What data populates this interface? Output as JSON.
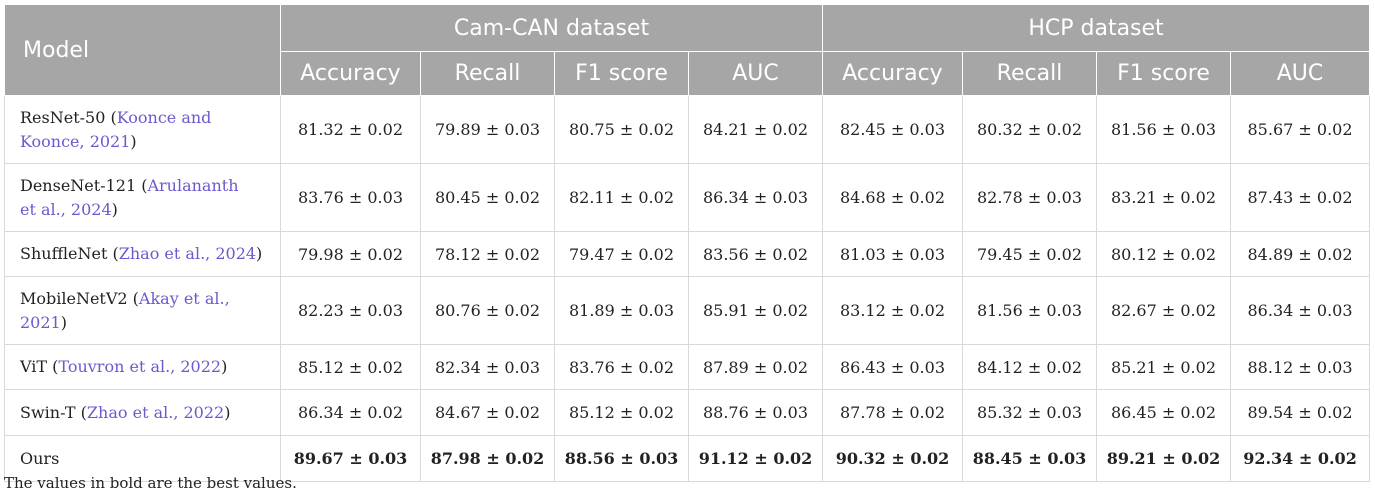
{
  "header": {
    "model": "Model",
    "groups": [
      "Cam-CAN dataset",
      "HCP dataset"
    ],
    "metrics": [
      "Accuracy",
      "Recall",
      "F1 score",
      "AUC",
      "Accuracy",
      "Recall",
      "F1 score",
      "AUC"
    ]
  },
  "rows": [
    {
      "name": "ResNet-50",
      "cite_line1": "Koonce and",
      "cite_line2": "Koonce, 2021",
      "close": ")",
      "values": [
        "81.32 ± 0.02",
        "79.89 ± 0.03",
        "80.75 ± 0.02",
        "84.21 ± 0.02",
        "82.45 ± 0.03",
        "80.32 ± 0.02",
        "81.56 ± 0.03",
        "85.67 ± 0.02"
      ]
    },
    {
      "name": "DenseNet-121",
      "cite_line1": "Arulananth",
      "cite_line2": "et al., 2024",
      "close": ")",
      "values": [
        "83.76 ± 0.03",
        "80.45 ± 0.02",
        "82.11 ± 0.02",
        "86.34 ± 0.03",
        "84.68 ± 0.02",
        "82.78 ± 0.03",
        "83.21 ± 0.02",
        "87.43 ± 0.02"
      ]
    },
    {
      "name": "ShuffleNet",
      "cite": "Zhao et al., 2024",
      "close": ")",
      "values": [
        "79.98 ± 0.02",
        "78.12 ± 0.02",
        "79.47 ± 0.02",
        "83.56 ± 0.02",
        "81.03 ± 0.03",
        "79.45 ± 0.02",
        "80.12 ± 0.02",
        "84.89 ± 0.02"
      ]
    },
    {
      "name": "MobileNetV2",
      "cite_line1": "Akay et al.,",
      "cite_line2": "2021",
      "close": ")",
      "values": [
        "82.23 ± 0.03",
        "80.76 ± 0.02",
        "81.89 ± 0.03",
        "85.91 ± 0.02",
        "83.12 ± 0.02",
        "81.56 ± 0.03",
        "82.67 ± 0.02",
        "86.34 ± 0.03"
      ]
    },
    {
      "name": "ViT",
      "cite": "Touvron et al., 2022",
      "close": ")",
      "values": [
        "85.12 ± 0.02",
        "82.34 ± 0.03",
        "83.76 ± 0.02",
        "87.89 ± 0.02",
        "86.43 ± 0.03",
        "84.12 ± 0.02",
        "85.21 ± 0.02",
        "88.12 ± 0.03"
      ]
    },
    {
      "name": "Swin-T",
      "cite": "Zhao et al., 2022",
      "close": ")",
      "values": [
        "86.34 ± 0.02",
        "84.67 ± 0.02",
        "85.12 ± 0.02",
        "88.76 ± 0.03",
        "87.78 ± 0.02",
        "85.32 ± 0.03",
        "86.45 ± 0.02",
        "89.54 ± 0.02"
      ]
    },
    {
      "name": "Ours",
      "values": [
        "89.67 ± 0.03",
        "87.98 ± 0.02",
        "88.56 ± 0.03",
        "91.12 ± 0.02",
        "90.32 ± 0.02",
        "88.45 ± 0.03",
        "89.21 ± 0.02",
        "92.34 ± 0.02"
      ]
    }
  ],
  "colors": {
    "header_bg": "#a6a6a6",
    "citation": "#6a5acd"
  },
  "footnote": "The values in bold are the best values."
}
